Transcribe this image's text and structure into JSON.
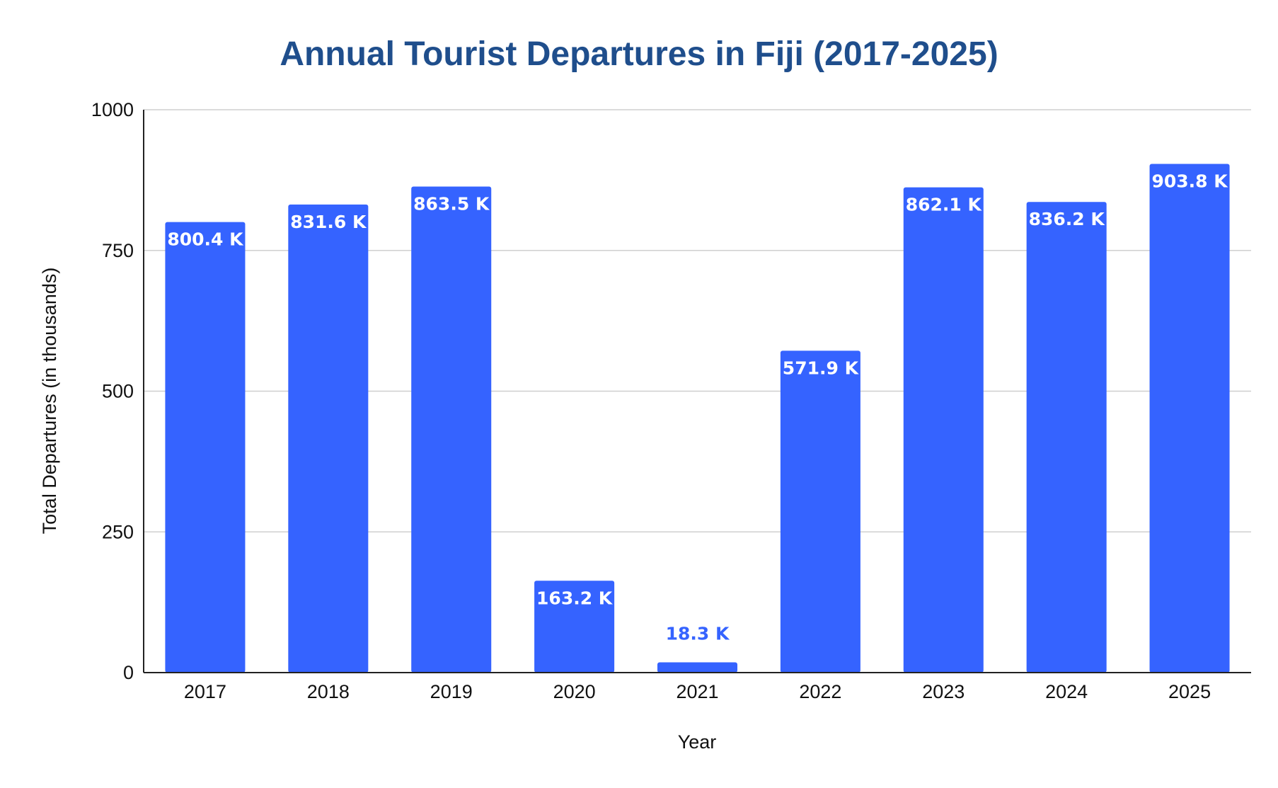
{
  "chart_data": {
    "type": "bar",
    "title": "Annual Tourist Departures in Fiji (2017-2025)",
    "xlabel": "Year",
    "ylabel": "Total Departures (in thousands)",
    "categories": [
      "2017",
      "2018",
      "2019",
      "2020",
      "2021",
      "2022",
      "2023",
      "2024",
      "2025"
    ],
    "values": [
      800.4,
      831.6,
      863.5,
      163.2,
      18.3,
      571.9,
      862.1,
      836.2,
      903.8
    ],
    "data_labels": [
      "800.4 K",
      "831.6 K",
      "863.5 K",
      "163.2 K",
      "18.3 K",
      "571.9 K",
      "862.1 K",
      "836.2 K",
      "903.8 K"
    ],
    "ylim": [
      0,
      1000
    ],
    "yticks": [
      0,
      250,
      500,
      750,
      1000
    ],
    "ytick_labels": [
      "0",
      "250",
      "500",
      "750",
      "1000"
    ],
    "grid": true,
    "legend": "none",
    "colors": {
      "bar": "#3563ff",
      "title": "#1f4e8c",
      "label_inside": "#ffffff",
      "label_outside": "#3563ff"
    }
  }
}
